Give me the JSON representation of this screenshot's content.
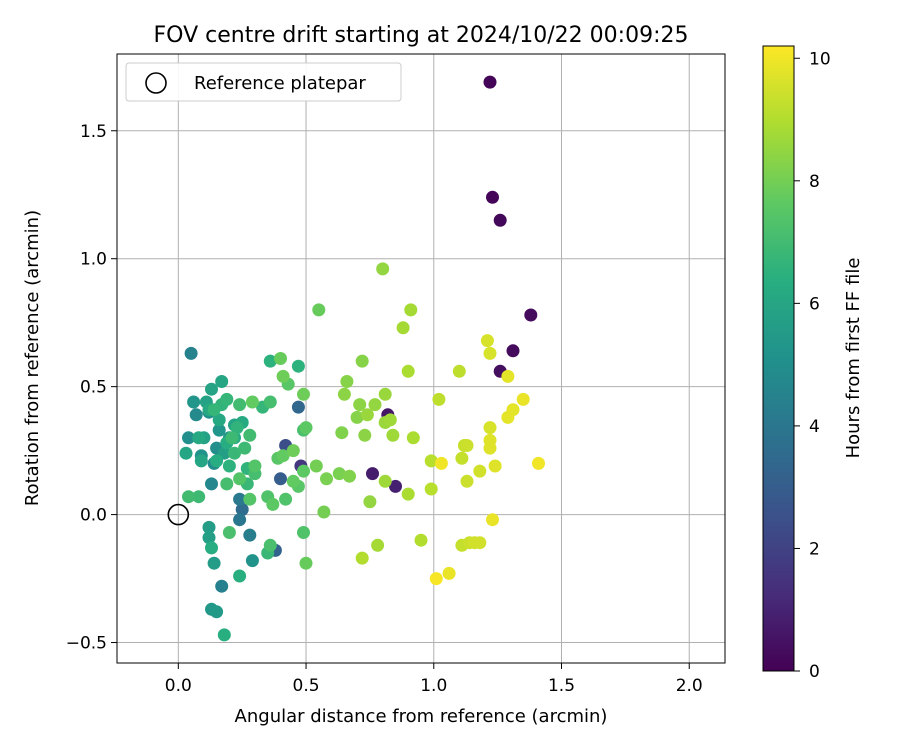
{
  "chart_data": {
    "type": "scatter",
    "title": "FOV centre drift starting at 2024/10/22 00:09:25",
    "xlabel": "Angular distance from reference (arcmin)",
    "ylabel": "Rotation from reference (arcmin)",
    "xlim": [
      -0.24,
      2.14
    ],
    "ylim": [
      -0.58,
      1.8
    ],
    "xticks": [
      0.0,
      0.5,
      1.0,
      1.5,
      2.0
    ],
    "xtick_labels": [
      "0.0",
      "0.5",
      "1.0",
      "1.5",
      "2.0"
    ],
    "yticks": [
      -0.5,
      0.0,
      0.5,
      1.0,
      1.5
    ],
    "ytick_labels": [
      "−0.5",
      "0.0",
      "0.5",
      "1.0",
      "1.5"
    ],
    "grid": true,
    "legend": {
      "placement": "top-left",
      "entries": [
        "Reference platepar"
      ]
    },
    "reference_point": {
      "x": 0.0,
      "y": 0.0,
      "label": "Reference platepar"
    },
    "colorbar": {
      "label": "Hours from first FF file",
      "colormap": "viridis",
      "range": [
        0,
        10.2
      ],
      "ticks": [
        0,
        2,
        4,
        6,
        8,
        10
      ],
      "tick_labels": [
        "0",
        "2",
        "4",
        "6",
        "8",
        "10"
      ]
    },
    "points": [
      {
        "x": 1.22,
        "y": 1.69,
        "t": 0.1
      },
      {
        "x": 1.23,
        "y": 1.24,
        "t": 0.1
      },
      {
        "x": 1.26,
        "y": 1.15,
        "t": 0.2
      },
      {
        "x": 1.38,
        "y": 0.78,
        "t": 0.3
      },
      {
        "x": 1.31,
        "y": 0.64,
        "t": 0.3
      },
      {
        "x": 1.26,
        "y": 0.56,
        "t": 0.4
      },
      {
        "x": 0.82,
        "y": 0.39,
        "t": 0.6
      },
      {
        "x": 0.76,
        "y": 0.16,
        "t": 0.8
      },
      {
        "x": 0.85,
        "y": 0.11,
        "t": 0.9
      },
      {
        "x": 0.48,
        "y": 0.19,
        "t": 1.6
      },
      {
        "x": 0.42,
        "y": 0.27,
        "t": 2.4
      },
      {
        "x": 0.4,
        "y": 0.14,
        "t": 3.0
      },
      {
        "x": 0.38,
        "y": -0.14,
        "t": 3.2
      },
      {
        "x": 0.47,
        "y": 0.42,
        "t": 3.4
      },
      {
        "x": 0.25,
        "y": 0.02,
        "t": 3.6
      },
      {
        "x": 0.24,
        "y": -0.02,
        "t": 4.0
      },
      {
        "x": 0.24,
        "y": 0.06,
        "t": 4.1
      },
      {
        "x": 0.28,
        "y": -0.08,
        "t": 4.3
      },
      {
        "x": 0.17,
        "y": -0.28,
        "t": 4.4
      },
      {
        "x": 0.05,
        "y": 0.63,
        "t": 4.5
      },
      {
        "x": 0.13,
        "y": 0.12,
        "t": 4.7
      },
      {
        "x": 0.07,
        "y": 0.39,
        "t": 4.8
      },
      {
        "x": 0.14,
        "y": 0.2,
        "t": 4.9
      },
      {
        "x": 0.15,
        "y": 0.26,
        "t": 5.0
      },
      {
        "x": 0.04,
        "y": 0.3,
        "t": 5.0
      },
      {
        "x": 0.12,
        "y": 0.4,
        "t": 5.1
      },
      {
        "x": 0.29,
        "y": -0.18,
        "t": 5.2
      },
      {
        "x": 0.09,
        "y": 0.23,
        "t": 5.2
      },
      {
        "x": 0.16,
        "y": 0.33,
        "t": 5.3
      },
      {
        "x": 0.06,
        "y": 0.44,
        "t": 5.3
      },
      {
        "x": 0.2,
        "y": 0.3,
        "t": 5.4
      },
      {
        "x": 0.13,
        "y": -0.37,
        "t": 5.4
      },
      {
        "x": 0.15,
        "y": -0.38,
        "t": 5.5
      },
      {
        "x": 0.14,
        "y": -0.19,
        "t": 5.6
      },
      {
        "x": 0.12,
        "y": -0.05,
        "t": 5.6
      },
      {
        "x": 0.12,
        "y": -0.09,
        "t": 5.7
      },
      {
        "x": 0.18,
        "y": 0.24,
        "t": 5.7
      },
      {
        "x": 0.1,
        "y": 0.3,
        "t": 5.8
      },
      {
        "x": 0.11,
        "y": 0.44,
        "t": 5.8
      },
      {
        "x": 0.13,
        "y": 0.49,
        "t": 5.9
      },
      {
        "x": 0.22,
        "y": 0.35,
        "t": 5.9
      },
      {
        "x": 0.09,
        "y": 0.21,
        "t": 6.0
      },
      {
        "x": 0.17,
        "y": 0.52,
        "t": 6.0
      },
      {
        "x": 0.03,
        "y": 0.24,
        "t": 6.0
      },
      {
        "x": 0.08,
        "y": 0.3,
        "t": 6.1
      },
      {
        "x": 0.12,
        "y": 0.41,
        "t": 6.1
      },
      {
        "x": 0.16,
        "y": 0.37,
        "t": 6.1
      },
      {
        "x": 0.22,
        "y": 0.3,
        "t": 6.2
      },
      {
        "x": 0.25,
        "y": 0.36,
        "t": 6.2
      },
      {
        "x": 0.19,
        "y": 0.28,
        "t": 6.3
      },
      {
        "x": 0.15,
        "y": 0.21,
        "t": 6.3
      },
      {
        "x": 0.13,
        "y": -0.13,
        "t": 6.3
      },
      {
        "x": 0.18,
        "y": -0.47,
        "t": 6.4
      },
      {
        "x": 0.24,
        "y": -0.24,
        "t": 6.4
      },
      {
        "x": 0.2,
        "y": 0.19,
        "t": 6.5
      },
      {
        "x": 0.36,
        "y": 0.6,
        "t": 6.5
      },
      {
        "x": 0.47,
        "y": 0.58,
        "t": 6.5
      },
      {
        "x": 0.17,
        "y": 0.43,
        "t": 6.6
      },
      {
        "x": 0.23,
        "y": 0.34,
        "t": 6.6
      },
      {
        "x": 0.27,
        "y": 0.18,
        "t": 6.6
      },
      {
        "x": 0.33,
        "y": 0.42,
        "t": 6.7
      },
      {
        "x": 0.19,
        "y": 0.45,
        "t": 6.7
      },
      {
        "x": 0.14,
        "y": 0.41,
        "t": 6.7
      },
      {
        "x": 0.22,
        "y": 0.24,
        "t": 6.8
      },
      {
        "x": 0.27,
        "y": 0.12,
        "t": 6.8
      },
      {
        "x": 0.35,
        "y": -0.15,
        "t": 6.8
      },
      {
        "x": 0.21,
        "y": 0.3,
        "t": 6.9
      },
      {
        "x": 0.26,
        "y": 0.26,
        "t": 6.9
      },
      {
        "x": 0.08,
        "y": 0.07,
        "t": 6.9
      },
      {
        "x": 0.04,
        "y": 0.07,
        "t": 7.0
      },
      {
        "x": 0.24,
        "y": 0.43,
        "t": 7.0
      },
      {
        "x": 0.28,
        "y": 0.31,
        "t": 7.0
      },
      {
        "x": 0.19,
        "y": 0.12,
        "t": 7.1
      },
      {
        "x": 0.3,
        "y": 0.16,
        "t": 7.1
      },
      {
        "x": 0.36,
        "y": 0.44,
        "t": 7.1
      },
      {
        "x": 0.49,
        "y": 0.33,
        "t": 7.2
      },
      {
        "x": 0.2,
        "y": -0.07,
        "t": 7.2
      },
      {
        "x": 0.36,
        "y": -0.12,
        "t": 7.2
      },
      {
        "x": 0.49,
        "y": -0.07,
        "t": 7.3
      },
      {
        "x": 0.35,
        "y": 0.07,
        "t": 7.3
      },
      {
        "x": 0.42,
        "y": 0.06,
        "t": 7.3
      },
      {
        "x": 0.24,
        "y": 0.14,
        "t": 7.4
      },
      {
        "x": 0.28,
        "y": 0.06,
        "t": 7.4
      },
      {
        "x": 0.3,
        "y": 0.19,
        "t": 7.4
      },
      {
        "x": 0.43,
        "y": 0.51,
        "t": 7.5
      },
      {
        "x": 0.39,
        "y": 0.22,
        "t": 7.5
      },
      {
        "x": 0.47,
        "y": 0.11,
        "t": 7.5
      },
      {
        "x": 0.5,
        "y": 0.34,
        "t": 7.6
      },
      {
        "x": 0.37,
        "y": 0.04,
        "t": 7.6
      },
      {
        "x": 0.49,
        "y": 0.17,
        "t": 7.6
      },
      {
        "x": 0.45,
        "y": 0.13,
        "t": 7.7
      },
      {
        "x": 0.29,
        "y": 0.44,
        "t": 7.7
      },
      {
        "x": 0.41,
        "y": 0.23,
        "t": 7.7
      },
      {
        "x": 0.4,
        "y": 0.61,
        "t": 7.8
      },
      {
        "x": 0.55,
        "y": 0.8,
        "t": 7.8
      },
      {
        "x": 0.5,
        "y": -0.19,
        "t": 7.8
      },
      {
        "x": 0.45,
        "y": 0.25,
        "t": 7.9
      },
      {
        "x": 0.41,
        "y": 0.54,
        "t": 7.9
      },
      {
        "x": 0.49,
        "y": 0.47,
        "t": 7.9
      },
      {
        "x": 0.54,
        "y": 0.19,
        "t": 8.0
      },
      {
        "x": 0.57,
        "y": 0.01,
        "t": 8.0
      },
      {
        "x": 0.58,
        "y": 0.14,
        "t": 8.1
      },
      {
        "x": 0.63,
        "y": 0.16,
        "t": 8.1
      },
      {
        "x": 0.67,
        "y": 0.15,
        "t": 8.2
      },
      {
        "x": 0.64,
        "y": 0.32,
        "t": 8.2
      },
      {
        "x": 0.66,
        "y": 0.52,
        "t": 8.3
      },
      {
        "x": 0.7,
        "y": 0.38,
        "t": 8.3
      },
      {
        "x": 0.72,
        "y": 0.6,
        "t": 8.3
      },
      {
        "x": 0.71,
        "y": 0.43,
        "t": 8.4
      },
      {
        "x": 0.73,
        "y": 0.31,
        "t": 8.4
      },
      {
        "x": 0.65,
        "y": 0.47,
        "t": 8.4
      },
      {
        "x": 0.75,
        "y": 0.05,
        "t": 8.5
      },
      {
        "x": 0.77,
        "y": 0.43,
        "t": 8.5
      },
      {
        "x": 0.8,
        "y": 0.96,
        "t": 8.5
      },
      {
        "x": 0.74,
        "y": 0.39,
        "t": 8.6
      },
      {
        "x": 0.81,
        "y": 0.47,
        "t": 8.6
      },
      {
        "x": 0.81,
        "y": 0.36,
        "t": 8.6
      },
      {
        "x": 0.81,
        "y": 0.13,
        "t": 8.7
      },
      {
        "x": 0.83,
        "y": 0.37,
        "t": 8.7
      },
      {
        "x": 0.84,
        "y": 0.31,
        "t": 8.7
      },
      {
        "x": 0.78,
        "y": -0.12,
        "t": 8.8
      },
      {
        "x": 0.88,
        "y": 0.73,
        "t": 8.8
      },
      {
        "x": 0.91,
        "y": 0.8,
        "t": 8.8
      },
      {
        "x": 0.9,
        "y": 0.56,
        "t": 8.9
      },
      {
        "x": 0.9,
        "y": 0.08,
        "t": 8.9
      },
      {
        "x": 0.92,
        "y": 0.3,
        "t": 8.9
      },
      {
        "x": 0.72,
        "y": -0.17,
        "t": 9.0
      },
      {
        "x": 0.95,
        "y": -0.1,
        "t": 9.0
      },
      {
        "x": 0.99,
        "y": 0.1,
        "t": 9.1
      },
      {
        "x": 0.99,
        "y": 0.21,
        "t": 9.1
      },
      {
        "x": 1.02,
        "y": 0.45,
        "t": 9.2
      },
      {
        "x": 1.1,
        "y": 0.56,
        "t": 9.2
      },
      {
        "x": 1.11,
        "y": -0.12,
        "t": 9.3
      },
      {
        "x": 1.11,
        "y": 0.22,
        "t": 9.3
      },
      {
        "x": 1.12,
        "y": 0.27,
        "t": 9.3
      },
      {
        "x": 1.13,
        "y": 0.27,
        "t": 9.4
      },
      {
        "x": 1.13,
        "y": 0.13,
        "t": 9.4
      },
      {
        "x": 1.14,
        "y": -0.11,
        "t": 9.4
      },
      {
        "x": 1.16,
        "y": -0.11,
        "t": 9.5
      },
      {
        "x": 1.18,
        "y": -0.11,
        "t": 9.5
      },
      {
        "x": 1.18,
        "y": 0.17,
        "t": 9.5
      },
      {
        "x": 1.21,
        "y": 0.68,
        "t": 9.6
      },
      {
        "x": 1.22,
        "y": 0.63,
        "t": 9.6
      },
      {
        "x": 1.22,
        "y": 0.34,
        "t": 9.6
      },
      {
        "x": 1.22,
        "y": 0.29,
        "t": 9.7
      },
      {
        "x": 1.22,
        "y": 0.26,
        "t": 9.7
      },
      {
        "x": 1.24,
        "y": 0.19,
        "t": 9.7
      },
      {
        "x": 1.29,
        "y": 0.54,
        "t": 9.8
      },
      {
        "x": 1.29,
        "y": 0.38,
        "t": 9.8
      },
      {
        "x": 1.31,
        "y": 0.41,
        "t": 9.8
      },
      {
        "x": 1.35,
        "y": 0.45,
        "t": 9.9
      },
      {
        "x": 1.23,
        "y": -0.02,
        "t": 9.9
      },
      {
        "x": 1.06,
        "y": -0.23,
        "t": 9.9
      },
      {
        "x": 1.41,
        "y": 0.2,
        "t": 10.0
      },
      {
        "x": 1.03,
        "y": 0.2,
        "t": 10.0
      },
      {
        "x": 1.01,
        "y": -0.25,
        "t": 10.1
      }
    ]
  }
}
